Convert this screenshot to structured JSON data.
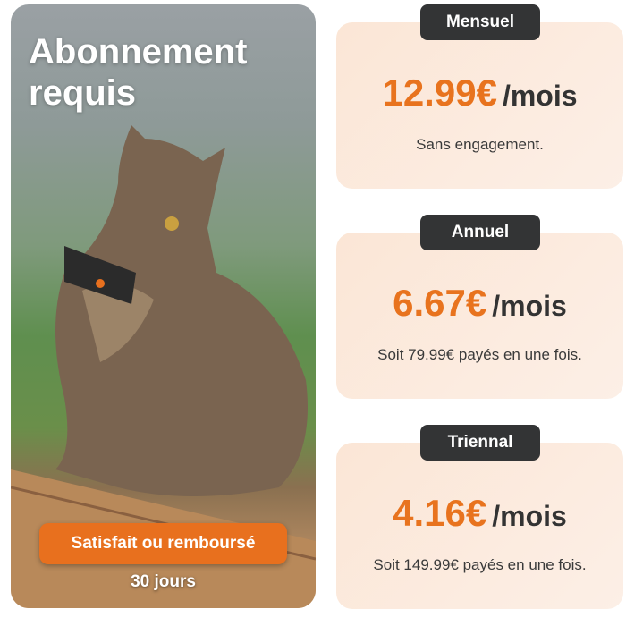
{
  "promo": {
    "title_line1": "Abonnement",
    "title_line2": "requis",
    "guarantee_label": "Satisfait ou remboursé",
    "guarantee_period": "30 jours"
  },
  "plans": [
    {
      "name": "Mensuel",
      "price": "12.99€",
      "unit": "/mois",
      "note": "Sans engagement."
    },
    {
      "name": "Annuel",
      "price": "6.67€",
      "unit": "/mois",
      "note": "Soit 79.99€ payés en une fois."
    },
    {
      "name": "Triennal",
      "price": "4.16€",
      "unit": "/mois",
      "note": "Soit 149.99€ payés en une fois."
    }
  ],
  "colors": {
    "accent": "#e8731e",
    "badge": "#333435",
    "card": "#fbe6d6"
  }
}
